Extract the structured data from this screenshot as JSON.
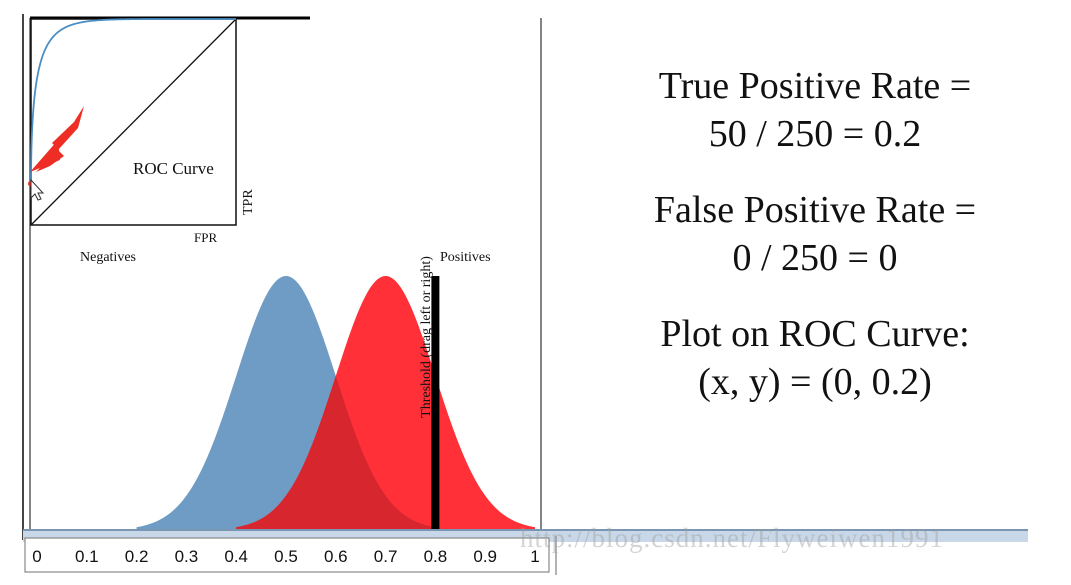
{
  "colors": {
    "negatives": "#6f9cc4",
    "positives": "#ff3038",
    "overlap": "#d8262f",
    "roc_curve": "#4a8ec4",
    "threshold": "#000000",
    "arrow": "#ee2e24"
  },
  "roc_inset": {
    "title": "ROC Curve",
    "xlabel": "FPR",
    "ylabel": "TPR"
  },
  "threshold_label": "Threshold (drag left or right)",
  "equations": {
    "tpr_line1": "True Positive Rate =",
    "tpr_line2": "50 / 250 = 0.2",
    "fpr_line1": "False Positive Rate =",
    "fpr_line2": "0 / 250 = 0",
    "plot_line1": "Plot on ROC Curve:",
    "plot_line2": "(x, y) = (0, 0.2)"
  },
  "watermark": "http://blog.csdn.net/Flyweiwen1991",
  "icons": {
    "pointer": "arrow-pointer-icon",
    "cursor": "mouse-cursor-icon"
  },
  "chart_data": [
    {
      "type": "area",
      "xlim": [
        0,
        1
      ],
      "x_ticks": [
        0,
        0.1,
        0.2,
        0.3,
        0.4,
        0.5,
        0.6,
        0.7,
        0.8,
        0.9,
        1
      ],
      "tick_labels": [
        "0",
        "0.1",
        "0.2",
        "0.3",
        "0.4",
        "0.5",
        "0.6",
        "0.7",
        "0.8",
        "0.9",
        "1"
      ],
      "series": [
        {
          "name": "Negatives",
          "mean": 0.5,
          "sd": 0.1,
          "support": [
            0.2,
            0.8
          ]
        },
        {
          "name": "Positives",
          "mean": 0.7,
          "sd": 0.1,
          "support": [
            0.4,
            1.0
          ]
        }
      ],
      "threshold": 0.8
    },
    {
      "type": "line",
      "title": "ROC Curve",
      "xlabel": "FPR",
      "ylabel": "TPR",
      "xlim": [
        0,
        1
      ],
      "ylim": [
        0,
        1
      ],
      "highlight_point": {
        "x": 0,
        "y": 0.2
      }
    }
  ]
}
